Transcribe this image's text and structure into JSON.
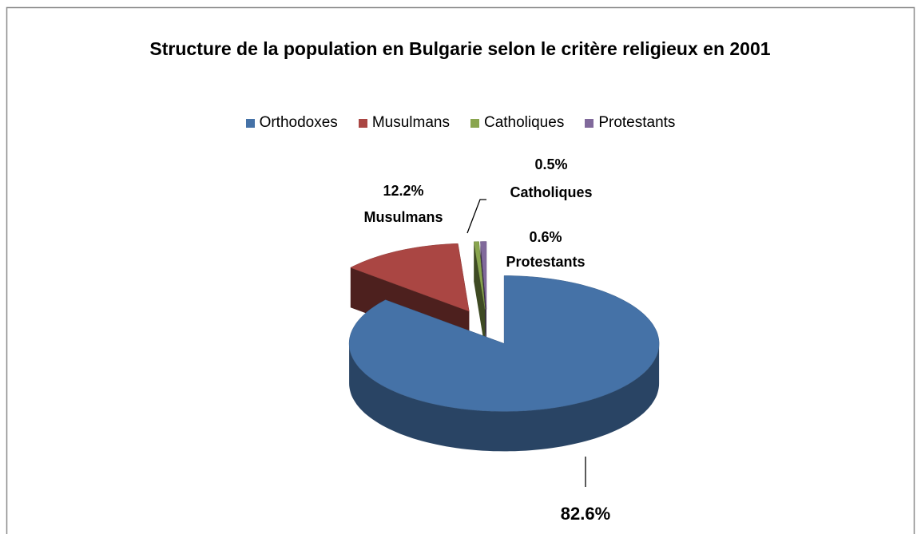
{
  "chart_data": {
    "type": "pie",
    "title": "Structure de la population en Bulgarie selon le critère religieux en 2001",
    "categories": [
      "Orthodoxes",
      "Musulmans",
      "Catholiques",
      "Protestants"
    ],
    "values": [
      82.6,
      12.2,
      0.5,
      0.6
    ],
    "value_labels": [
      "82.6%",
      "12.2%",
      "0.5%",
      "0.6%"
    ],
    "colors": [
      "#4572a7",
      "#aa4643",
      "#89a54e",
      "#80699b"
    ],
    "legend": "top",
    "three_d": true
  }
}
